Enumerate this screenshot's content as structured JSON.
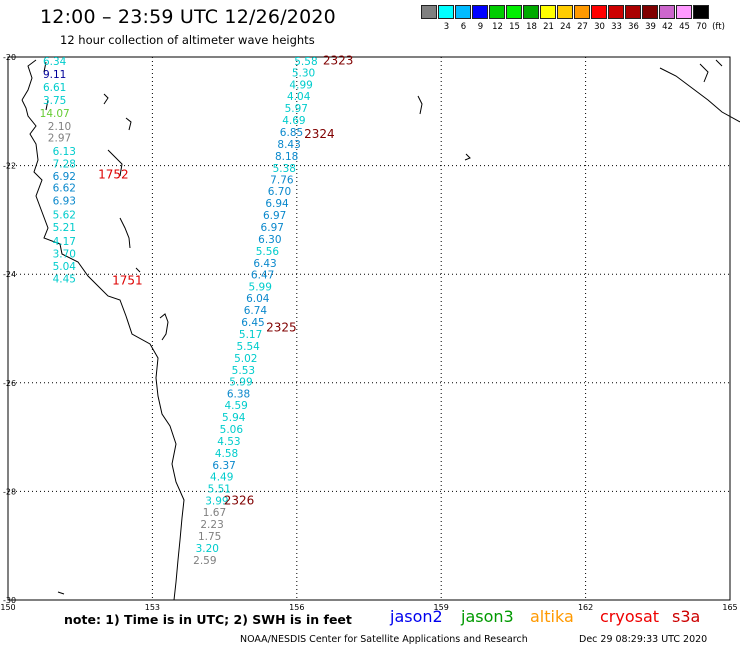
{
  "title": "12:00 – 23:59 UTC 12/26/2020",
  "subtitle": "12 hour collection of altimeter wave heights",
  "legend": {
    "unit": "(ft)",
    "bins": [
      {
        "label": "",
        "color": "#808080"
      },
      {
        "label": "3",
        "color": "#00ffff"
      },
      {
        "label": "6",
        "color": "#00bbff"
      },
      {
        "label": "9",
        "color": "#0000ff"
      },
      {
        "label": "12",
        "color": "#00cc00"
      },
      {
        "label": "15",
        "color": "#00ee00"
      },
      {
        "label": "18",
        "color": "#00aa00"
      },
      {
        "label": "21",
        "color": "#ffff00"
      },
      {
        "label": "24",
        "color": "#ffcc00"
      },
      {
        "label": "27",
        "color": "#ff9900"
      },
      {
        "label": "30",
        "color": "#ff0000"
      },
      {
        "label": "33",
        "color": "#cc0000"
      },
      {
        "label": "36",
        "color": "#aa0000"
      },
      {
        "label": "39",
        "color": "#800000"
      },
      {
        "label": "42",
        "color": "#cc66cc"
      },
      {
        "label": "45",
        "color": "#ff99ff"
      },
      {
        "label": "70",
        "color": "#000000"
      }
    ]
  },
  "axes": {
    "lat_labels": [
      "-20",
      "-22",
      "-24",
      "-26",
      "-28",
      "-30"
    ],
    "lat_values": [
      -20,
      -22,
      -24,
      -26,
      -28,
      -30
    ],
    "lon_labels": [
      "150",
      "153",
      "156",
      "159",
      "162",
      "165"
    ],
    "lon_values": [
      150,
      153,
      156,
      159,
      162,
      165
    ],
    "lon_range": [
      150,
      165
    ],
    "lat_range": [
      -30,
      -20
    ]
  },
  "colors": {
    "gray": "#808080",
    "cyan": "#00cccc",
    "blue": "#0a88cc",
    "navy": "#000099",
    "lightgreen": "#66cc33",
    "darkred": "#800000",
    "red": "#dd0000"
  },
  "tracks": [
    {
      "id": "west",
      "points": [
        {
          "lon": 150.97,
          "lat": -20.07,
          "value": "6.34",
          "color": "cyan"
        },
        {
          "lon": 150.97,
          "lat": -20.31,
          "value": "9.11",
          "color": "navy"
        },
        {
          "lon": 150.97,
          "lat": -20.55,
          "value": "6.61",
          "color": "cyan"
        },
        {
          "lon": 150.97,
          "lat": -20.79,
          "value": "3.75",
          "color": "cyan"
        },
        {
          "lon": 150.97,
          "lat": -21.03,
          "value": "14.07",
          "color": "lightgreen"
        },
        {
          "lon": 151.07,
          "lat": -21.27,
          "value": "2.10",
          "color": "gray"
        },
        {
          "lon": 151.07,
          "lat": -21.48,
          "value": "2.97",
          "color": "gray"
        },
        {
          "lon": 151.17,
          "lat": -21.73,
          "value": "6.13",
          "color": "cyan"
        },
        {
          "lon": 151.17,
          "lat": -21.96,
          "value": "7.28",
          "color": "cyan"
        },
        {
          "lon": 151.17,
          "lat": -22.19,
          "value": "6.92",
          "color": "blue"
        },
        {
          "lon": 151.17,
          "lat": -22.4,
          "value": "6.62",
          "color": "blue"
        },
        {
          "lon": 151.17,
          "lat": -22.64,
          "value": "6.93",
          "color": "blue"
        },
        {
          "lon": 151.17,
          "lat": -22.9,
          "value": "5.62",
          "color": "cyan"
        },
        {
          "lon": 151.17,
          "lat": -23.13,
          "value": "5.21",
          "color": "cyan"
        },
        {
          "lon": 151.17,
          "lat": -23.39,
          "value": "4.17",
          "color": "cyan"
        },
        {
          "lon": 151.17,
          "lat": -23.62,
          "value": "3.70",
          "color": "cyan"
        },
        {
          "lon": 151.17,
          "lat": -23.85,
          "value": "5.04",
          "color": "cyan"
        },
        {
          "lon": 151.17,
          "lat": -24.08,
          "value": "4.45",
          "color": "cyan"
        }
      ]
    },
    {
      "id": "east",
      "points": [
        {
          "lon": 156.19,
          "lat": -20.07,
          "value": "5.58",
          "color": "cyan"
        },
        {
          "lon": 156.14,
          "lat": -20.29,
          "value": "5.30",
          "color": "cyan"
        },
        {
          "lon": 156.09,
          "lat": -20.51,
          "value": "4.99",
          "color": "cyan"
        },
        {
          "lon": 156.04,
          "lat": -20.72,
          "value": "4.04",
          "color": "cyan"
        },
        {
          "lon": 155.99,
          "lat": -20.94,
          "value": "5.97",
          "color": "cyan"
        },
        {
          "lon": 155.94,
          "lat": -21.16,
          "value": "4.69",
          "color": "cyan"
        },
        {
          "lon": 155.89,
          "lat": -21.38,
          "value": "6.85",
          "color": "blue"
        },
        {
          "lon": 155.84,
          "lat": -21.6,
          "value": "8.43",
          "color": "blue"
        },
        {
          "lon": 155.79,
          "lat": -21.82,
          "value": "8.18",
          "color": "blue"
        },
        {
          "lon": 155.74,
          "lat": -22.04,
          "value": "5.38",
          "color": "cyan"
        },
        {
          "lon": 155.69,
          "lat": -22.26,
          "value": "7.76",
          "color": "blue"
        },
        {
          "lon": 155.64,
          "lat": -22.47,
          "value": "6.70",
          "color": "blue"
        },
        {
          "lon": 155.59,
          "lat": -22.69,
          "value": "6.94",
          "color": "blue"
        },
        {
          "lon": 155.54,
          "lat": -22.91,
          "value": "6.97",
          "color": "blue"
        },
        {
          "lon": 155.49,
          "lat": -23.13,
          "value": "6.97",
          "color": "blue"
        },
        {
          "lon": 155.44,
          "lat": -23.35,
          "value": "6.30",
          "color": "blue"
        },
        {
          "lon": 155.39,
          "lat": -23.57,
          "value": "5.56",
          "color": "cyan"
        },
        {
          "lon": 155.34,
          "lat": -23.79,
          "value": "6.43",
          "color": "blue"
        },
        {
          "lon": 155.29,
          "lat": -24.01,
          "value": "6.47",
          "color": "blue"
        },
        {
          "lon": 155.24,
          "lat": -24.23,
          "value": "5.99",
          "color": "cyan"
        },
        {
          "lon": 155.19,
          "lat": -24.44,
          "value": "6.04",
          "color": "blue"
        },
        {
          "lon": 155.14,
          "lat": -24.66,
          "value": "6.74",
          "color": "blue"
        },
        {
          "lon": 155.09,
          "lat": -24.88,
          "value": "6.45",
          "color": "blue"
        },
        {
          "lon": 155.04,
          "lat": -25.1,
          "value": "5.17",
          "color": "cyan"
        },
        {
          "lon": 154.99,
          "lat": -25.32,
          "value": "5.54",
          "color": "cyan"
        },
        {
          "lon": 154.94,
          "lat": -25.54,
          "value": "5.02",
          "color": "cyan"
        },
        {
          "lon": 154.89,
          "lat": -25.76,
          "value": "5.53",
          "color": "cyan"
        },
        {
          "lon": 154.84,
          "lat": -25.98,
          "value": "5.99",
          "color": "cyan"
        },
        {
          "lon": 154.79,
          "lat": -26.2,
          "value": "6.38",
          "color": "blue"
        },
        {
          "lon": 154.74,
          "lat": -26.41,
          "value": "4.59",
          "color": "cyan"
        },
        {
          "lon": 154.69,
          "lat": -26.63,
          "value": "5.94",
          "color": "cyan"
        },
        {
          "lon": 154.64,
          "lat": -26.85,
          "value": "5.06",
          "color": "cyan"
        },
        {
          "lon": 154.59,
          "lat": -27.07,
          "value": "4.53",
          "color": "cyan"
        },
        {
          "lon": 154.54,
          "lat": -27.29,
          "value": "4.58",
          "color": "cyan"
        },
        {
          "lon": 154.49,
          "lat": -27.51,
          "value": "6.37",
          "color": "blue"
        },
        {
          "lon": 154.44,
          "lat": -27.73,
          "value": "4.49",
          "color": "cyan"
        },
        {
          "lon": 154.39,
          "lat": -27.95,
          "value": "5.51",
          "color": "cyan"
        },
        {
          "lon": 154.34,
          "lat": -28.17,
          "value": "3.99",
          "color": "cyan"
        },
        {
          "lon": 154.29,
          "lat": -28.38,
          "value": "1.67",
          "color": "gray"
        },
        {
          "lon": 154.24,
          "lat": -28.6,
          "value": "2.23",
          "color": "gray"
        },
        {
          "lon": 154.19,
          "lat": -28.82,
          "value": "1.75",
          "color": "gray"
        },
        {
          "lon": 154.14,
          "lat": -29.04,
          "value": "3.20",
          "color": "cyan"
        },
        {
          "lon": 154.09,
          "lat": -29.26,
          "value": "2.59",
          "color": "gray"
        }
      ]
    }
  ],
  "time_labels": [
    {
      "text": "2323",
      "lon": 156.86,
      "lat": -20.05,
      "color": "darkred"
    },
    {
      "text": "2324",
      "lon": 156.47,
      "lat": -21.4,
      "color": "darkred"
    },
    {
      "text": "1752",
      "lon": 152.19,
      "lat": -22.15,
      "color": "red"
    },
    {
      "text": "1751",
      "lon": 152.48,
      "lat": -24.1,
      "color": "red"
    },
    {
      "text": "2325",
      "lon": 155.68,
      "lat": -24.96,
      "color": "darkred"
    },
    {
      "text": "2326",
      "lon": 154.8,
      "lat": -28.15,
      "color": "darkred"
    }
  ],
  "footer": {
    "note": "note: 1) Time is in UTC; 2) SWH is in feet",
    "satellites": [
      {
        "name": "jason2",
        "color": "#0000ee"
      },
      {
        "name": "jason3",
        "color": "#009900"
      },
      {
        "name": "altika",
        "color": "#ff9900"
      },
      {
        "name": "cryosat",
        "color": "#ee0000"
      },
      {
        "name": "s3a",
        "color": "#cc0000"
      }
    ],
    "credit": "NOAA/NESDIS Center for Satellite Applications and Research",
    "timestamp": "Dec 29 08:29:33 UTC 2020"
  }
}
